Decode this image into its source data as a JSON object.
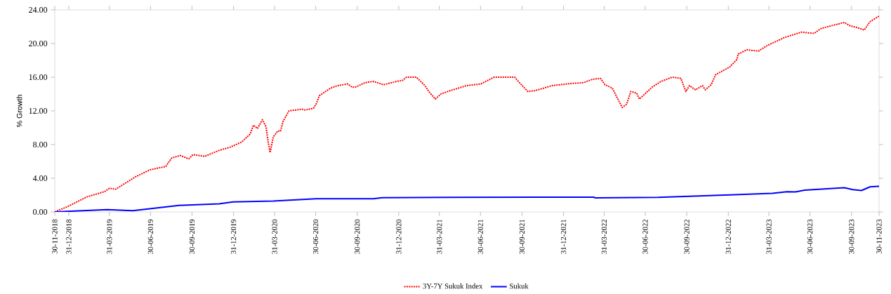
{
  "chart_data": {
    "type": "line",
    "ylabel": "% Growth",
    "legend": "bottom",
    "xlim": [
      "2018-11-30",
      "2023-11-30"
    ],
    "xticks": [
      {
        "value": "2018-11-30",
        "label": "30-11-2018"
      },
      {
        "value": "2018-12-31",
        "label": "31-12-2018"
      },
      {
        "value": "2019-03-31",
        "label": "31-03-2019"
      },
      {
        "value": "2019-06-30",
        "label": "30-06-2019"
      },
      {
        "value": "2019-09-30",
        "label": "30-09-2019"
      },
      {
        "value": "2019-12-31",
        "label": "31-12-2019"
      },
      {
        "value": "2020-03-31",
        "label": "31-03-2020"
      },
      {
        "value": "2020-06-30",
        "label": "30-06-2020"
      },
      {
        "value": "2020-09-30",
        "label": "30-09-2020"
      },
      {
        "value": "2020-12-31",
        "label": "31-12-2020"
      },
      {
        "value": "2021-03-31",
        "label": "31-03-2021"
      },
      {
        "value": "2021-06-30",
        "label": "30-06-2021"
      },
      {
        "value": "2021-09-30",
        "label": "30-09-2021"
      },
      {
        "value": "2021-12-31",
        "label": "31-12-2021"
      },
      {
        "value": "2022-03-31",
        "label": "31-03-2022"
      },
      {
        "value": "2022-06-30",
        "label": "30-06-2022"
      },
      {
        "value": "2022-09-30",
        "label": "30-09-2022"
      },
      {
        "value": "2022-12-31",
        "label": "31-12-2022"
      },
      {
        "value": "2023-03-31",
        "label": "31-03-2023"
      },
      {
        "value": "2023-06-30",
        "label": "30-06-2023"
      },
      {
        "value": "2023-09-30",
        "label": "30-09-2023"
      },
      {
        "value": "2023-11-30",
        "label": "30-11-2023"
      }
    ],
    "ylim": [
      0,
      24
    ],
    "yticks": [
      {
        "value": 0,
        "label": "0.00"
      },
      {
        "value": 4,
        "label": "4.00"
      },
      {
        "value": 8,
        "label": "8.00"
      },
      {
        "value": 12,
        "label": "12.00"
      },
      {
        "value": 16,
        "label": "16.00"
      },
      {
        "value": 20,
        "label": "20.00"
      },
      {
        "value": 24,
        "label": "24.00"
      }
    ],
    "series": [
      {
        "name": "3Y-7Y Sukuk Index",
        "color": "#ff0000",
        "line_style": "dotted",
        "x": [
          "2018-11-30",
          "2018-12-27",
          "2019-02-10",
          "2019-03-20",
          "2019-03-31",
          "2019-04-14",
          "2019-05-29",
          "2019-06-29",
          "2019-08-03",
          "2019-08-16",
          "2019-09-04",
          "2019-09-23",
          "2019-10-02",
          "2019-10-28",
          "2019-11-29",
          "2019-12-24",
          "2020-01-18",
          "2020-02-06",
          "2020-02-13",
          "2020-02-22",
          "2020-03-04",
          "2020-03-12",
          "2020-03-17",
          "2020-03-21",
          "2020-03-28",
          "2020-04-07",
          "2020-04-13",
          "2020-04-19",
          "2020-05-02",
          "2020-05-31",
          "2020-06-06",
          "2020-06-25",
          "2020-07-01",
          "2020-07-08",
          "2020-08-02",
          "2020-08-18",
          "2020-09-09",
          "2020-09-19",
          "2020-09-28",
          "2020-10-17",
          "2020-11-05",
          "2020-11-27",
          "2020-12-26",
          "2021-01-08",
          "2021-01-17",
          "2021-02-08",
          "2021-02-27",
          "2021-03-09",
          "2021-03-22",
          "2021-04-03",
          "2021-04-24",
          "2021-05-30",
          "2021-07-01",
          "2021-07-30",
          "2021-09-14",
          "2021-09-27",
          "2021-10-13",
          "2021-10-29",
          "2021-12-06",
          "2022-01-16",
          "2022-02-13",
          "2022-03-05",
          "2022-03-23",
          "2022-04-02",
          "2022-04-18",
          "2022-05-10",
          "2022-05-20",
          "2022-05-29",
          "2022-06-11",
          "2022-06-17",
          "2022-07-16",
          "2022-08-04",
          "2022-08-29",
          "2022-09-17",
          "2022-09-28",
          "2022-10-06",
          "2022-10-19",
          "2022-11-04",
          "2022-11-10",
          "2022-11-23",
          "2022-12-03",
          "2023-01-03",
          "2023-01-19",
          "2023-01-22",
          "2023-02-10",
          "2023-03-08",
          "2023-03-27",
          "2023-05-04",
          "2023-06-11",
          "2023-07-09",
          "2023-07-25",
          "2023-09-14",
          "2023-09-27",
          "2023-10-12",
          "2023-10-28",
          "2023-11-10",
          "2023-11-30"
        ],
        "values": [
          0,
          0.6,
          1.8,
          2.4,
          2.8,
          2.7,
          4.2,
          5.0,
          5.4,
          6.4,
          6.7,
          6.3,
          6.8,
          6.6,
          7.3,
          7.7,
          8.3,
          9.25,
          10.3,
          9.9,
          10.95,
          10.1,
          8.2,
          7.05,
          8.9,
          9.6,
          9.6,
          10.8,
          12.0,
          12.2,
          12.1,
          12.3,
          12.8,
          13.8,
          14.7,
          15.0,
          15.2,
          14.8,
          14.85,
          15.35,
          15.5,
          15.1,
          15.5,
          15.6,
          16.0,
          16.0,
          15.0,
          14.2,
          13.4,
          14.0,
          14.4,
          15.0,
          15.2,
          16.0,
          16.0,
          15.2,
          14.3,
          14.4,
          15.0,
          15.25,
          15.35,
          15.75,
          15.85,
          15.1,
          14.7,
          12.4,
          12.8,
          14.3,
          14.1,
          13.4,
          14.85,
          15.5,
          16.0,
          15.85,
          14.3,
          15.0,
          14.5,
          15.0,
          14.5,
          15.1,
          16.3,
          17.2,
          18.1,
          18.75,
          19.25,
          19.1,
          19.75,
          20.7,
          21.35,
          21.2,
          21.8,
          22.5,
          22.1,
          21.9,
          21.6,
          22.6,
          23.25
        ]
      },
      {
        "name": "Sukuk",
        "color": "#0000ff",
        "line_style": "solid",
        "x": [
          "2018-11-30",
          "2019-03-26",
          "2019-05-22",
          "2019-09-01",
          "2019-11-29",
          "2019-12-30",
          "2020-03-28",
          "2020-07-01",
          "2020-11-05",
          "2020-11-24",
          "2021-04-24",
          "2022-03-08",
          "2022-03-11",
          "2022-07-29",
          "2023-01-03",
          "2023-04-08",
          "2023-05-10",
          "2023-05-29",
          "2023-06-18",
          "2023-09-14",
          "2023-10-03",
          "2023-10-22",
          "2023-11-10",
          "2023-11-30"
        ],
        "values": [
          0,
          0.27,
          0.14,
          0.78,
          0.95,
          1.19,
          1.29,
          1.56,
          1.56,
          1.69,
          1.73,
          1.76,
          1.66,
          1.73,
          2.03,
          2.2,
          2.4,
          2.37,
          2.58,
          2.88,
          2.64,
          2.54,
          2.98,
          3.05
        ]
      }
    ]
  }
}
